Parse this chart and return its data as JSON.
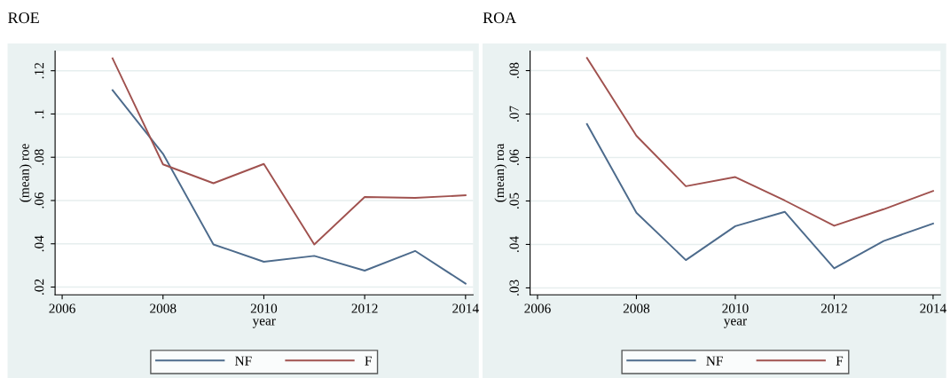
{
  "chart_data": [
    {
      "type": "line",
      "title": "ROE",
      "xlabel": "year",
      "ylabel": "(mean) roe",
      "x": [
        2007,
        2008,
        2009,
        2010,
        2011,
        2012,
        2013,
        2014
      ],
      "series": [
        {
          "name": "NF",
          "color": "#4d6b8c",
          "values": [
            0.111,
            0.0816,
            0.0397,
            0.0317,
            0.0344,
            0.0276,
            0.0367,
            0.0216
          ]
        },
        {
          "name": "F",
          "color": "#a0524f",
          "values": [
            0.1257,
            0.0767,
            0.068,
            0.0769,
            0.0397,
            0.0616,
            0.0612,
            0.0624
          ]
        }
      ],
      "xlim": [
        2005.86,
        2014.15
      ],
      "xticks": [
        2006,
        2008,
        2010,
        2012,
        2014
      ],
      "ylim": [
        0.0164,
        0.1291
      ],
      "yticks": [
        {
          "value": 0.02,
          "label": ".02"
        },
        {
          "value": 0.04,
          "label": ".04"
        },
        {
          "value": 0.06,
          "label": ".06"
        },
        {
          "value": 0.08,
          "label": ".08"
        },
        {
          "value": 0.1,
          "label": ".1"
        },
        {
          "value": 0.12,
          "label": ".12"
        }
      ],
      "grid": "y",
      "legend": "bottom",
      "marker": "none",
      "line_style": "solid"
    },
    {
      "type": "line",
      "title": "ROA",
      "xlabel": "year",
      "ylabel": "(mean) roa",
      "x": [
        2007,
        2008,
        2009,
        2010,
        2011,
        2012,
        2013,
        2014
      ],
      "series": [
        {
          "name": "NF",
          "color": "#4d6b8c",
          "values": [
            0.0677,
            0.0473,
            0.0364,
            0.0442,
            0.0475,
            0.0345,
            0.0408,
            0.0448
          ]
        },
        {
          "name": "F",
          "color": "#a0524f",
          "values": [
            0.0829,
            0.065,
            0.0534,
            0.0555,
            0.0501,
            0.0443,
            0.0481,
            0.0523
          ]
        }
      ],
      "xlim": [
        2005.85,
        2014.15
      ],
      "xticks": [
        2006,
        2008,
        2010,
        2012,
        2014
      ],
      "ylim": [
        0.0284,
        0.0845
      ],
      "yticks": [
        {
          "value": 0.03,
          "label": ".03"
        },
        {
          "value": 0.04,
          "label": ".04"
        },
        {
          "value": 0.05,
          "label": ".05"
        },
        {
          "value": 0.06,
          "label": ".06"
        },
        {
          "value": 0.07,
          "label": ".07"
        },
        {
          "value": 0.08,
          "label": ".08"
        }
      ],
      "grid": "y",
      "legend": "bottom",
      "marker": "none",
      "line_style": "solid"
    }
  ]
}
